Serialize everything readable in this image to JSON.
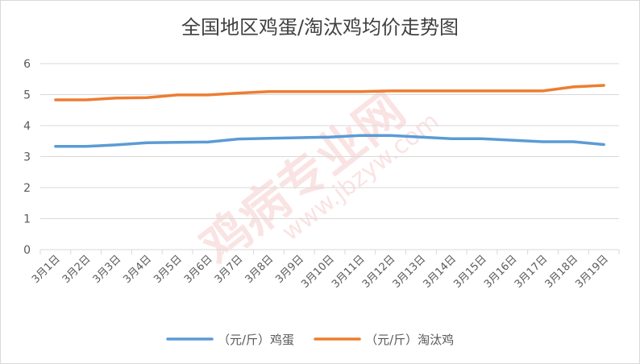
{
  "chart_data": {
    "type": "line",
    "title": "全国地区鸡蛋/淘汰鸡均价走势图",
    "categories": [
      "3月1日",
      "3月2日",
      "3月3日",
      "3月4日",
      "3月5日",
      "3月6日",
      "3月7日",
      "3月8日",
      "3月9日",
      "3月10日",
      "3月11日",
      "3月12日",
      "3月13日",
      "3月14日",
      "3月15日",
      "3月16日",
      "3月17日",
      "3月18日",
      "3月19日"
    ],
    "ylim": [
      0,
      6
    ],
    "yticks": [
      "0",
      "1",
      "2",
      "3",
      "4",
      "5",
      "6"
    ],
    "grid": true,
    "legend_position": "bottom",
    "series": [
      {
        "name": "（元/斤）鸡蛋",
        "color": "#5b9bd5",
        "values": [
          3.33,
          3.33,
          3.38,
          3.45,
          3.46,
          3.47,
          3.57,
          3.59,
          3.61,
          3.63,
          3.68,
          3.68,
          3.63,
          3.58,
          3.58,
          3.53,
          3.48,
          3.48,
          3.39
        ]
      },
      {
        "name": "（元/斤）淘汰鸡",
        "color": "#ed7d31",
        "values": [
          4.83,
          4.83,
          4.89,
          4.9,
          4.99,
          4.99,
          5.05,
          5.1,
          5.1,
          5.1,
          5.1,
          5.12,
          5.12,
          5.12,
          5.12,
          5.12,
          5.12,
          5.25,
          5.3
        ]
      }
    ]
  },
  "watermark": {
    "text_main": "鸡病专业网",
    "text_url": "www.jbzyw.com"
  }
}
